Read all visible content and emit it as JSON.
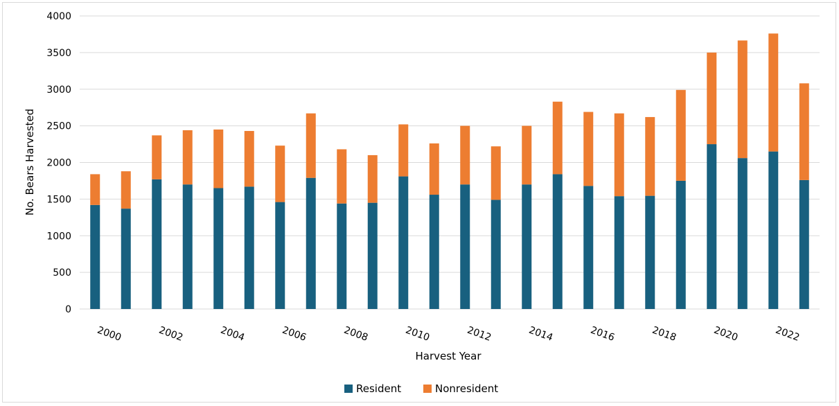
{
  "chart_data": {
    "type": "bar",
    "stacked": true,
    "title": "",
    "xlabel": "Harvest Year",
    "ylabel": "No. Bears Harvested",
    "ylim": [
      0,
      4000
    ],
    "yticks": [
      "0",
      "500",
      "1000",
      "1500",
      "2000",
      "2500",
      "3000",
      "3500",
      "4000"
    ],
    "grid": true,
    "legend_position": "bottom",
    "categories": [
      "2000",
      "2001",
      "2002",
      "2003",
      "2004",
      "2005",
      "2006",
      "2007",
      "2008",
      "2009",
      "2010",
      "2011",
      "2012",
      "2013",
      "2014",
      "2015",
      "2016",
      "2017",
      "2018",
      "2019",
      "2020",
      "2021",
      "2022",
      "2023"
    ],
    "xtick_labels": [
      "2000",
      "",
      "2002",
      "",
      "2004",
      "",
      "2006",
      "",
      "2008",
      "",
      "2010",
      "",
      "2012",
      "",
      "2014",
      "",
      "2016",
      "",
      "2018",
      "",
      "2020",
      "",
      "2022",
      ""
    ],
    "series": [
      {
        "name": "Resident",
        "color": "#18607f",
        "values": [
          1420,
          1370,
          1770,
          1700,
          1650,
          1670,
          1460,
          1790,
          1440,
          1450,
          1810,
          1560,
          1700,
          1490,
          1700,
          1840,
          1680,
          1540,
          1545,
          1750,
          2250,
          2060,
          2150,
          1760
        ]
      },
      {
        "name": "Nonresident",
        "color": "#ed7d31",
        "values": [
          420,
          510,
          600,
          740,
          800,
          760,
          770,
          880,
          740,
          650,
          710,
          700,
          800,
          730,
          800,
          990,
          1010,
          1130,
          1075,
          1240,
          1250,
          1605,
          1610,
          1320
        ]
      }
    ]
  }
}
